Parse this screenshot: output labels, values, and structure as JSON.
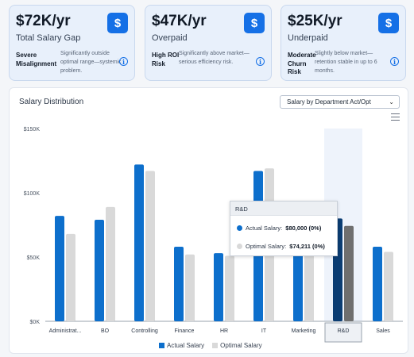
{
  "cards": [
    {
      "value": "$72K/yr",
      "label": "Total Salary Gap",
      "status": "Severe Misalignment",
      "desc": "Significantly outside optimal range—systemic problem.",
      "icon": "dollar-icon"
    },
    {
      "value": "$47K/yr",
      "label": "Overpaid",
      "status": "High ROI Risk",
      "desc": "Significantly above market—serious efficiency risk.",
      "icon": "dollar-icon"
    },
    {
      "value": "$25K/yr",
      "label": "Underpaid",
      "status": "Moderate Churn Risk",
      "desc": "Slightly below market—retention stable in up to 6 months.",
      "icon": "dollar-icon"
    }
  ],
  "panel": {
    "title": "Salary Distribution",
    "select_value": "Salary by Department Act/Opt",
    "menu_icon": "hamburger-menu-icon"
  },
  "tooltip": {
    "category": "R&D",
    "actual_label": "Actual Salary:",
    "actual_value": "$80,000 (0%)",
    "optimal_label": "Optimal Salary:",
    "optimal_value": "$74,211 (0%)"
  },
  "colors": {
    "actual": "#0d6fcc",
    "optimal": "#d9d9d9",
    "actual_highlight": "#0b3d73",
    "optimal_highlight": "#6f6f6f",
    "accent": "#1570e6"
  },
  "chart_data": {
    "type": "bar",
    "categories": [
      "Administrat...",
      "BO",
      "Controlling",
      "Finance",
      "HR",
      "IT",
      "Marketing",
      "R&D",
      "Sales"
    ],
    "series": [
      {
        "name": "Actual Salary",
        "values": [
          82000,
          79000,
          122000,
          58000,
          53000,
          117000,
          60000,
          80000,
          58000
        ]
      },
      {
        "name": "Optimal Salary",
        "values": [
          68000,
          89000,
          117000,
          52000,
          51000,
          119000,
          55000,
          74211,
          54000
        ]
      }
    ],
    "yticks": [
      "$0K",
      "$50K",
      "$100K",
      "$150K"
    ],
    "ylim": [
      0,
      150000
    ],
    "highlighted_category": "R&D",
    "legend_position": "bottom",
    "grid": false
  }
}
